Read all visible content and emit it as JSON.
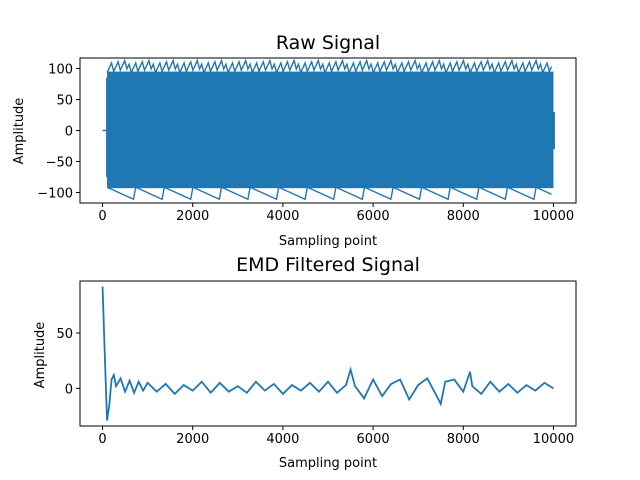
{
  "colors": {
    "line": "#1f77b4",
    "axes": "#000000",
    "background": "#ffffff"
  },
  "chart_data": [
    {
      "type": "line",
      "title": "Raw Signal",
      "xlabel": "Sampling point",
      "ylabel": "Amplitude",
      "xlim": [
        -500,
        10500
      ],
      "ylim": [
        -117,
        117
      ],
      "xticks": [
        0,
        2000,
        4000,
        6000,
        8000,
        10000
      ],
      "yticks": [
        -100,
        -50,
        0,
        50,
        100
      ],
      "grid": false,
      "description_of_series": "dense oscillation between about -107 and 109 from x=100 to x=10000; flat at 0 before x=100",
      "series": [
        {
          "name": "",
          "envelope_x": [
            0,
            100,
            10000
          ],
          "envelope_upper": [
            0,
            108,
            108
          ],
          "envelope_lower": [
            0,
            -106,
            -106
          ]
        }
      ]
    },
    {
      "type": "line",
      "title": "EMD Filtered Signal",
      "xlabel": "Sampling point",
      "ylabel": "Amplitude",
      "xlim": [
        -500,
        10500
      ],
      "ylim": [
        -34,
        97
      ],
      "xticks": [
        0,
        2000,
        4000,
        6000,
        8000,
        10000
      ],
      "yticks": [
        0,
        50
      ],
      "grid": false,
      "series": [
        {
          "name": "",
          "x": [
            0,
            50,
            100,
            150,
            200,
            250,
            300,
            400,
            500,
            600,
            700,
            800,
            900,
            1000,
            1200,
            1400,
            1600,
            1800,
            2000,
            2200,
            2400,
            2600,
            2800,
            3000,
            3200,
            3400,
            3600,
            3800,
            4000,
            4200,
            4400,
            4600,
            4800,
            5000,
            5200,
            5400,
            5500,
            5600,
            5800,
            6000,
            6200,
            6400,
            6600,
            6800,
            7000,
            7200,
            7400,
            7500,
            7600,
            7800,
            8000,
            8150,
            8200,
            8400,
            8600,
            8800,
            9000,
            9200,
            9400,
            9600,
            9800,
            10000
          ],
          "values": [
            92,
            30,
            -29,
            -15,
            8,
            12,
            2,
            9,
            -3,
            7,
            -4,
            6,
            -2,
            5,
            -3,
            4,
            -5,
            3,
            -2,
            6,
            -4,
            5,
            -3,
            2,
            -4,
            6,
            -2,
            4,
            -5,
            3,
            -2,
            5,
            -3,
            6,
            -4,
            3,
            17,
            2,
            -9,
            8,
            -7,
            4,
            8,
            -10,
            3,
            9,
            -6,
            -14,
            6,
            8,
            -3,
            15,
            2,
            -5,
            6,
            -3,
            4,
            -4,
            3,
            -2,
            5,
            0
          ]
        }
      ]
    }
  ]
}
